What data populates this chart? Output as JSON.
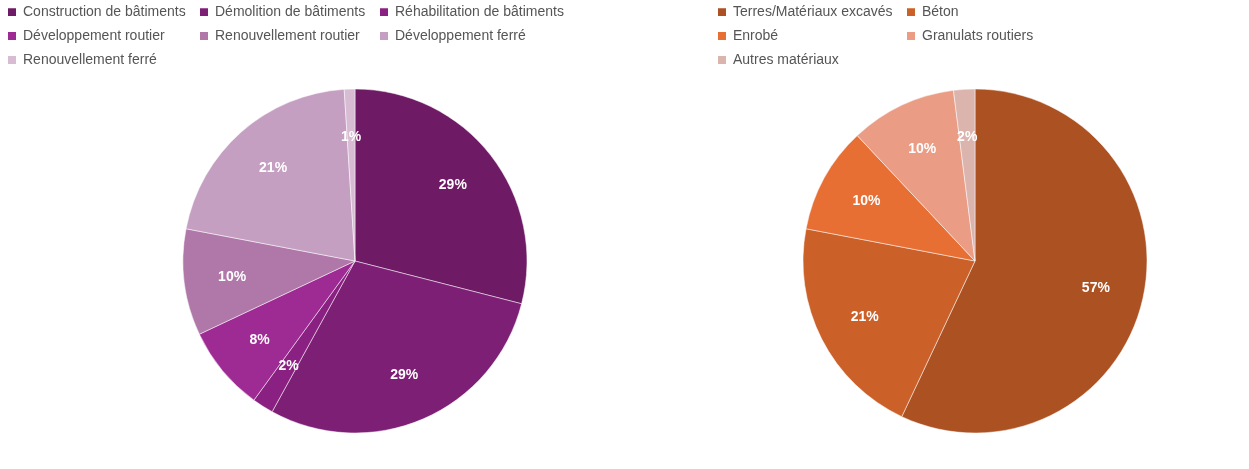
{
  "chart_data": [
    {
      "type": "pie",
      "categories": [
        "Construction de bâtiments",
        "Démolition de bâtiments",
        "Réhabilitation de bâtiments",
        "Développement routier",
        "Renouvellement routier",
        "Développement ferré",
        "Renouvellement ferré"
      ],
      "values": [
        29,
        29,
        2,
        8,
        10,
        21,
        1
      ],
      "value_labels": [
        "29%",
        "29%",
        "2%",
        "8%",
        "10%",
        "21%",
        "1%"
      ],
      "colors": [
        "#6e1a64",
        "#7e1f76",
        "#8a2082",
        "#9e2a94",
        "#b077a9",
        "#c59fc2",
        "#d8bcd4"
      ],
      "legend": "top"
    },
    {
      "type": "pie",
      "categories": [
        "Terres/Matériaux excavés",
        "Béton",
        "Enrobé",
        "Granulats routiers",
        "Autres matériaux"
      ],
      "values": [
        57,
        21,
        10,
        10,
        2
      ],
      "value_labels": [
        "57%",
        "21%",
        "10%",
        "10%",
        "2%"
      ],
      "colors": [
        "#ab5122",
        "#cc6029",
        "#e76f34",
        "#eb9c85",
        "#dcb4ae"
      ],
      "legend": "top"
    }
  ]
}
